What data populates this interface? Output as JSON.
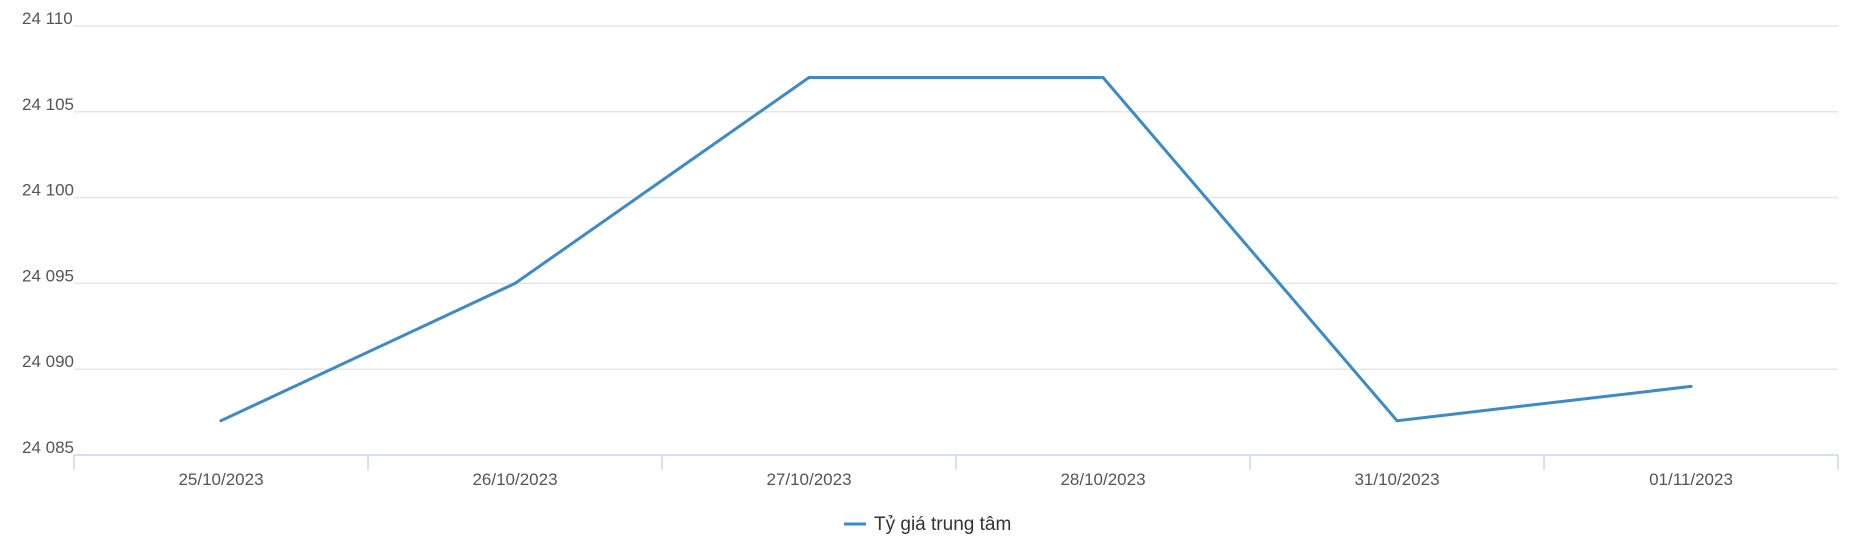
{
  "chart_data": {
    "type": "line",
    "title": "",
    "xlabel": "",
    "ylabel": "",
    "categories": [
      "25/10/2023",
      "26/10/2023",
      "27/10/2023",
      "28/10/2023",
      "31/10/2023",
      "01/11/2023"
    ],
    "series": [
      {
        "name": "Tỷ giá trung tâm",
        "values": [
          24087,
          24095,
          24107,
          24107,
          24087,
          24089
        ],
        "color": "#3d8ac4"
      }
    ],
    "ylim": [
      24085,
      24110
    ],
    "yticks": [
      24085,
      24090,
      24095,
      24100,
      24105,
      24110
    ],
    "ytick_labels": [
      "24 085",
      "24 090",
      "24 095",
      "24 100",
      "24 105",
      "24 110"
    ],
    "grid": true,
    "legend_position": "bottom-center",
    "gridline_color": "#e6e6e6",
    "axis_color": "#ccd6eb"
  }
}
